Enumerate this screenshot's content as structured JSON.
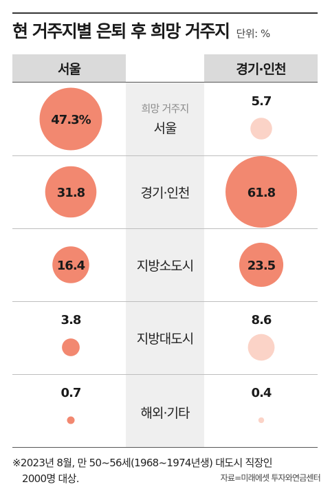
{
  "title": "현 거주지별 은퇴 후 희망 거주지",
  "unit": "단위: %",
  "header": {
    "left": "서울",
    "right": "경기·인천"
  },
  "row_sublabel": "희망 거주지",
  "footnote": {
    "line1": "※2023년 8월, 만 50~56세(1968~1974년생) 대도시 직장인",
    "line2": "2000명 대상."
  },
  "source": "자료=미래에셋 투자와연금센터",
  "colors": {
    "bubble_fill": "#f28870",
    "bubble_stroke": "#e87862",
    "bubble_light": "#fbd3c7"
  },
  "chart_data": [
    {
      "type": "bubble",
      "name": "서울",
      "categories": [
        "서울",
        "경기·인천",
        "지방소도시",
        "지방대도시",
        "해외·기타"
      ],
      "values": [
        47.3,
        31.8,
        16.4,
        3.8,
        0.7
      ],
      "labels": [
        "47.3%",
        "31.8",
        "16.4",
        "3.8",
        "0.7"
      ]
    },
    {
      "type": "bubble",
      "name": "경기·인천",
      "categories": [
        "서울",
        "경기·인천",
        "지방소도시",
        "지방대도시",
        "해외·기타"
      ],
      "values": [
        5.7,
        61.8,
        23.5,
        8.6,
        0.4
      ],
      "labels": [
        "5.7",
        "61.8",
        "23.5",
        "8.6",
        "0.4"
      ]
    }
  ]
}
